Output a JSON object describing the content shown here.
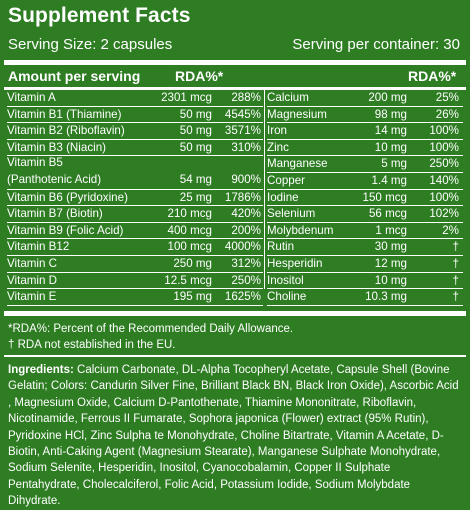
{
  "title": "Supplement Facts",
  "serving_size": "Serving Size: 2 capsules",
  "serving_per_container": "Serving per container: 30",
  "header_left": "Amount per serving",
  "header_rda_left": "RDA%*",
  "header_rda_right": "RDA%*",
  "left_rows": [
    {
      "name": "Vitamin A",
      "amount": "2301 mcg",
      "rda": "288%"
    },
    {
      "name": "Vitamin B1 (Thiamine)",
      "amount": "50 mg",
      "rda": "4545%"
    },
    {
      "name": "Vitamin B2 (Riboflavin)",
      "amount": "50 mg",
      "rda": "3571%"
    },
    {
      "name": "Vitamin B3 (Niacin)",
      "amount": "50 mg",
      "rda": "310%"
    },
    {
      "name": "Vitamin B5",
      "name2": "(Panthotenic Acid)",
      "amount": "54 mg",
      "rda": "900%"
    },
    {
      "name": "Vitamin B6 (Pyridoxine)",
      "amount": "25 mg",
      "rda": "1786%"
    },
    {
      "name": "Vitamin B7 (Biotin)",
      "amount": "210 mcg",
      "rda": "420%"
    },
    {
      "name": "Vitamin B9 (Folic Acid)",
      "amount": "400 mcg",
      "rda": "200%"
    },
    {
      "name": "Vitamin B12",
      "amount": "100 mcg",
      "rda": "4000%"
    },
    {
      "name": "Vitamin C",
      "amount": "250 mg",
      "rda": "312%"
    },
    {
      "name": "Vitamin D",
      "amount": "12.5 mcg",
      "rda": "250%"
    },
    {
      "name": "Vitamin E",
      "amount": "195 mg",
      "rda": "1625%"
    }
  ],
  "right_rows": [
    {
      "name": "Calcium",
      "amount": "200 mg",
      "rda": "25%"
    },
    {
      "name": "Magnesium",
      "amount": "98 mg",
      "rda": "26%"
    },
    {
      "name": "Iron",
      "amount": "14 mg",
      "rda": "100%"
    },
    {
      "name": "Zinc",
      "amount": "10 mg",
      "rda": "100%"
    },
    {
      "name": "Manganese",
      "amount": "5 mg",
      "rda": "250%"
    },
    {
      "name": "Copper",
      "amount": "1.4 mg",
      "rda": "140%"
    },
    {
      "name": "Iodine",
      "amount": "150 mcg",
      "rda": "100%"
    },
    {
      "name": "Selenium",
      "amount": "56 mcg",
      "rda": "102%"
    },
    {
      "name": "Molybdenum",
      "amount": "1 mcg",
      "rda": "2%"
    },
    {
      "name": "Rutin",
      "amount": "30 mg",
      "rda": "†"
    },
    {
      "name": "Hesperidin",
      "amount": "12 mg",
      "rda": "†"
    },
    {
      "name": "Inositol",
      "amount": "10 mg",
      "rda": "†"
    },
    {
      "name": "Choline",
      "amount": "10.3 mg",
      "rda": "†"
    }
  ],
  "note_rda": "*RDA%: Percent of the Recommended Daily Allowance.",
  "note_dagger": "† RDA not established in the EU.",
  "ingredients_label": "Ingredients:",
  "ingredients_text": "Calcium Carbonate, DL-Alpha Tocopheryl Acetate, Capsule Shell (Bovine Gelatin; Colors: Candurin Silver Fine, Brilliant Black BN, Black Iron Oxide), Ascorbic Acid , Magnesium Oxide, Calcium D-Pantothenate, Thiamine Mononitrate, Riboflavin, Nicotinamide, Ferrous II Fumarate, Sophora japonica (Flower) extract (95% Rutin), Pyridoxine HCl, Zinc Sulpha te Monohydrate, Choline Bitartrate, Vitamin A Acetate, D-Biotin, Anti-Caking Agent (Magnesium Stearate), Manganese Sulphate Monohydrate, Sodium Selenite, Hesperidin, Inositol, Cyanocobalamin, Copper II Sulphate Pentahydrate, Cholecalciferol, Folic Acid, Potassium Iodide, Sodium Molybdate Dihydrate.",
  "colors": {
    "background": "#2e7d23",
    "text": "#ffffff"
  }
}
